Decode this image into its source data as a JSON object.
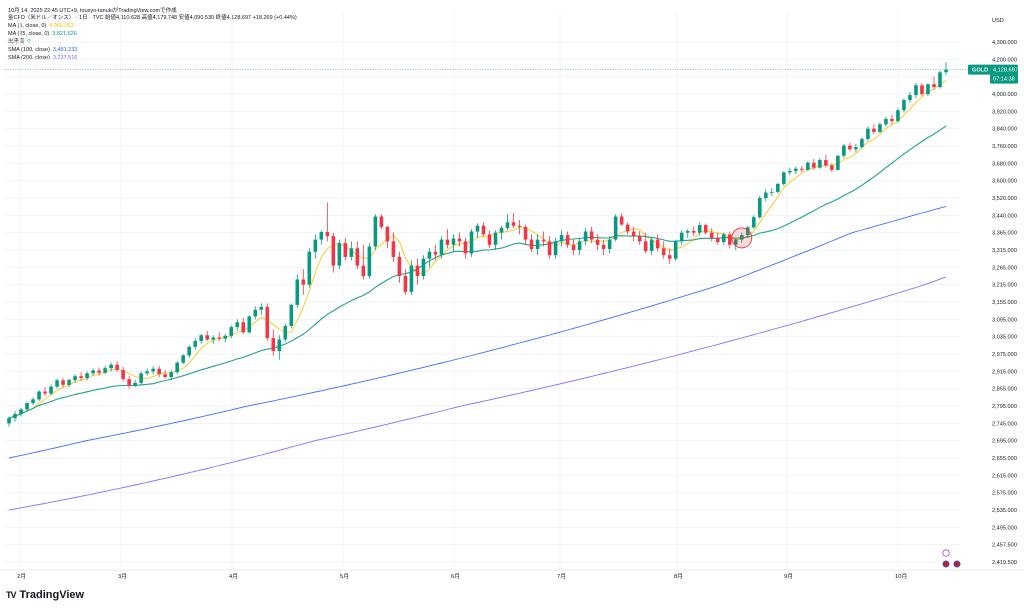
{
  "header": {
    "topline": "10月 14, 2025 22:45 UTC+9,  tousyo-tanukiがTradingView.comで作成",
    "legend": [
      {
        "name": "金CFD（米ドル／オンス） · 1日 · TVC  始値4,110.628  高値4,179.748  安値4,090.530  終値4,128.697  +18.269 (+0.44%)",
        "value": "",
        "color": "#131722"
      },
      {
        "name": "MA (5, close, 0)",
        "value": "4,066.063",
        "color": "#f5c400"
      },
      {
        "name": "MA (25, close, 0)",
        "value": "3,821.626",
        "color": "#089981"
      },
      {
        "name": "出来高",
        "value": "0",
        "color": "#089981"
      },
      {
        "name": "SMA (100, close)",
        "value": "3,481.233",
        "color": "#2962ff"
      },
      {
        "name": "SMA (200, close)",
        "value": "3,237.516",
        "color": "#7b61ff"
      }
    ]
  },
  "price_axis": {
    "currency": "USD",
    "ticks": [
      "4,300.000",
      "4,200.000",
      "4,080.000",
      "4,000.000",
      "3,920.000",
      "3,840.000",
      "3,760.000",
      "3,680.000",
      "3,600.000",
      "3,520.000",
      "3,440.000",
      "3,365.000",
      "3,315.000",
      "3,265.000",
      "3,215.000",
      "3,155.000",
      "3,095.000",
      "3,035.000",
      "2,975.000",
      "2,915.000",
      "2,855.000",
      "2,795.000",
      "2,745.000",
      "2,695.000",
      "2,655.000",
      "2,615.000",
      "2,575.000",
      "2,535.000",
      "2,495.000",
      "2,457.500",
      "2,419.500"
    ],
    "last_label": "GOLD",
    "last_price": "4,128.697",
    "countdown": "07:14:38"
  },
  "time_axis": {
    "labels": [
      "2月",
      "3月",
      "4月",
      "5月",
      "6月",
      "7月",
      "8月",
      "9月",
      "10月"
    ]
  },
  "branding": {
    "logo_text": "TradingView",
    "logo_mark": "TV"
  },
  "colors": {
    "up": "#089981",
    "down": "#f23645",
    "ma5": "#f5c400",
    "ma25": "#089981",
    "sma100": "#2962ff",
    "sma200": "#7b61ff",
    "grid": "#f0f3fa"
  },
  "chart_data": {
    "type": "candlestick",
    "xlabel": "",
    "ylabel": "USD",
    "ylim": [
      2419.5,
      4300
    ],
    "grid": true,
    "legend_position": "top-left",
    "series": [
      {
        "name": "金CFD（米ドル／オンス）",
        "values": [
          [
            2745,
            2765,
            2735,
            2760
          ],
          [
            2760,
            2780,
            2750,
            2772
          ],
          [
            2772,
            2790,
            2765,
            2785
          ],
          [
            2785,
            2810,
            2780,
            2805
          ],
          [
            2805,
            2825,
            2798,
            2818
          ],
          [
            2818,
            2850,
            2812,
            2845
          ],
          [
            2845,
            2860,
            2830,
            2838
          ],
          [
            2838,
            2870,
            2832,
            2862
          ],
          [
            2862,
            2890,
            2856,
            2884
          ],
          [
            2884,
            2892,
            2860,
            2868
          ],
          [
            2868,
            2890,
            2860,
            2885
          ],
          [
            2885,
            2905,
            2875,
            2898
          ],
          [
            2898,
            2912,
            2882,
            2892
          ],
          [
            2892,
            2915,
            2885,
            2908
          ],
          [
            2908,
            2925,
            2900,
            2918
          ],
          [
            2918,
            2928,
            2900,
            2910
          ],
          [
            2910,
            2935,
            2905,
            2926
          ],
          [
            2926,
            2945,
            2915,
            2938
          ],
          [
            2938,
            2950,
            2912,
            2920
          ],
          [
            2920,
            2930,
            2880,
            2888
          ],
          [
            2888,
            2900,
            2855,
            2865
          ],
          [
            2865,
            2885,
            2860,
            2875
          ],
          [
            2875,
            2915,
            2870,
            2908
          ],
          [
            2908,
            2925,
            2900,
            2915
          ],
          [
            2915,
            2932,
            2905,
            2924
          ],
          [
            2924,
            2934,
            2895,
            2905
          ],
          [
            2905,
            2920,
            2890,
            2895
          ],
          [
            2895,
            2920,
            2885,
            2912
          ],
          [
            2912,
            2950,
            2905,
            2945
          ],
          [
            2945,
            2975,
            2940,
            2970
          ],
          [
            2970,
            3005,
            2962,
            3000
          ],
          [
            3000,
            3030,
            2990,
            3020
          ],
          [
            3020,
            3045,
            3010,
            3040
          ],
          [
            3040,
            3055,
            3020,
            3025
          ],
          [
            3025,
            3040,
            3010,
            3032
          ],
          [
            3032,
            3050,
            3020,
            3028
          ],
          [
            3028,
            3045,
            3015,
            3038
          ],
          [
            3038,
            3075,
            3030,
            3068
          ],
          [
            3068,
            3095,
            3055,
            3085
          ],
          [
            3085,
            3100,
            3045,
            3050
          ],
          [
            3050,
            3110,
            3045,
            3105
          ],
          [
            3105,
            3140,
            3095,
            3128
          ],
          [
            3128,
            3150,
            3110,
            3138
          ],
          [
            3138,
            3150,
            3020,
            3030
          ],
          [
            3030,
            3060,
            2970,
            2985
          ],
          [
            2985,
            3040,
            2955,
            3025
          ],
          [
            3025,
            3080,
            3018,
            3072
          ],
          [
            3072,
            3150,
            3065,
            3145
          ],
          [
            3145,
            3245,
            3135,
            3230
          ],
          [
            3230,
            3260,
            3180,
            3215
          ],
          [
            3215,
            3320,
            3205,
            3310
          ],
          [
            3310,
            3360,
            3290,
            3345
          ],
          [
            3345,
            3375,
            3330,
            3368
          ],
          [
            3368,
            3500,
            3340,
            3355
          ],
          [
            3355,
            3365,
            3250,
            3270
          ],
          [
            3270,
            3345,
            3260,
            3335
          ],
          [
            3335,
            3350,
            3285,
            3295
          ],
          [
            3295,
            3340,
            3285,
            3320
          ],
          [
            3320,
            3340,
            3260,
            3270
          ],
          [
            3270,
            3330,
            3230,
            3240
          ],
          [
            3240,
            3335,
            3232,
            3325
          ],
          [
            3325,
            3445,
            3315,
            3435
          ],
          [
            3435,
            3445,
            3380,
            3390
          ],
          [
            3390,
            3395,
            3320,
            3340
          ],
          [
            3340,
            3365,
            3280,
            3295
          ],
          [
            3295,
            3310,
            3220,
            3240
          ],
          [
            3240,
            3260,
            3180,
            3190
          ],
          [
            3190,
            3285,
            3180,
            3270
          ],
          [
            3270,
            3290,
            3215,
            3240
          ],
          [
            3240,
            3300,
            3230,
            3290
          ],
          [
            3290,
            3320,
            3265,
            3310
          ],
          [
            3310,
            3330,
            3285,
            3302
          ],
          [
            3302,
            3355,
            3290,
            3345
          ],
          [
            3345,
            3380,
            3320,
            3330
          ],
          [
            3330,
            3360,
            3310,
            3348
          ],
          [
            3348,
            3365,
            3325,
            3340
          ],
          [
            3340,
            3350,
            3290,
            3305
          ],
          [
            3305,
            3380,
            3295,
            3370
          ],
          [
            3370,
            3405,
            3350,
            3395
          ],
          [
            3395,
            3410,
            3355,
            3360
          ],
          [
            3360,
            3375,
            3320,
            3330
          ],
          [
            3330,
            3375,
            3315,
            3365
          ],
          [
            3365,
            3395,
            3345,
            3385
          ],
          [
            3385,
            3445,
            3375,
            3410
          ],
          [
            3410,
            3450,
            3385,
            3395
          ],
          [
            3395,
            3420,
            3360,
            3390
          ],
          [
            3390,
            3400,
            3330,
            3345
          ],
          [
            3345,
            3360,
            3310,
            3318
          ],
          [
            3318,
            3360,
            3300,
            3345
          ],
          [
            3345,
            3370,
            3325,
            3340
          ],
          [
            3340,
            3355,
            3290,
            3300
          ],
          [
            3300,
            3350,
            3290,
            3340
          ],
          [
            3340,
            3375,
            3325,
            3358
          ],
          [
            3358,
            3370,
            3320,
            3330
          ],
          [
            3330,
            3345,
            3300,
            3315
          ],
          [
            3315,
            3350,
            3300,
            3340
          ],
          [
            3340,
            3385,
            3330,
            3370
          ],
          [
            3370,
            3390,
            3335,
            3345
          ],
          [
            3345,
            3360,
            3315,
            3330
          ],
          [
            3330,
            3345,
            3300,
            3318
          ],
          [
            3318,
            3355,
            3305,
            3345
          ],
          [
            3345,
            3445,
            3340,
            3435
          ],
          [
            3435,
            3450,
            3395,
            3400
          ],
          [
            3400,
            3410,
            3360,
            3370
          ],
          [
            3370,
            3390,
            3340,
            3355
          ],
          [
            3355,
            3372,
            3330,
            3340
          ],
          [
            3340,
            3365,
            3305,
            3312
          ],
          [
            3312,
            3352,
            3300,
            3345
          ],
          [
            3345,
            3360,
            3310,
            3320
          ],
          [
            3320,
            3340,
            3290,
            3300
          ],
          [
            3300,
            3320,
            3275,
            3290
          ],
          [
            3290,
            3345,
            3285,
            3340
          ],
          [
            3340,
            3375,
            3330,
            3365
          ],
          [
            3365,
            3380,
            3350,
            3372
          ],
          [
            3372,
            3392,
            3355,
            3365
          ],
          [
            3365,
            3410,
            3355,
            3398
          ],
          [
            3398,
            3405,
            3360,
            3365
          ],
          [
            3365,
            3385,
            3340,
            3350
          ],
          [
            3350,
            3365,
            3330,
            3338
          ],
          [
            3338,
            3365,
            3330,
            3360
          ],
          [
            3360,
            3370,
            3320,
            3330
          ],
          [
            3330,
            3350,
            3315,
            3345
          ],
          [
            3345,
            3365,
            3335,
            3358
          ],
          [
            3358,
            3395,
            3350,
            3388
          ],
          [
            3388,
            3440,
            3380,
            3432
          ],
          [
            3432,
            3530,
            3425,
            3520
          ],
          [
            3520,
            3560,
            3505,
            3545
          ],
          [
            3545,
            3565,
            3530,
            3548
          ],
          [
            3548,
            3590,
            3540,
            3585
          ],
          [
            3585,
            3645,
            3575,
            3638
          ],
          [
            3638,
            3660,
            3625,
            3645
          ],
          [
            3645,
            3665,
            3630,
            3655
          ],
          [
            3655,
            3668,
            3640,
            3650
          ],
          [
            3650,
            3690,
            3645,
            3683
          ],
          [
            3683,
            3700,
            3650,
            3660
          ],
          [
            3660,
            3705,
            3655,
            3695
          ],
          [
            3695,
            3720,
            3660,
            3670
          ],
          [
            3670,
            3680,
            3640,
            3650
          ],
          [
            3650,
            3720,
            3645,
            3715
          ],
          [
            3715,
            3770,
            3705,
            3762
          ],
          [
            3762,
            3775,
            3735,
            3745
          ],
          [
            3745,
            3770,
            3730,
            3755
          ],
          [
            3755,
            3800,
            3748,
            3792
          ],
          [
            3792,
            3850,
            3785,
            3840
          ],
          [
            3840,
            3860,
            3815,
            3825
          ],
          [
            3825,
            3870,
            3818,
            3860
          ],
          [
            3860,
            3895,
            3850,
            3885
          ],
          [
            3885,
            3905,
            3860,
            3875
          ],
          [
            3875,
            3935,
            3868,
            3925
          ],
          [
            3925,
            3980,
            3915,
            3972
          ],
          [
            3972,
            4010,
            3960,
            3995
          ],
          [
            3995,
            4050,
            3980,
            4040
          ],
          [
            4040,
            4050,
            3990,
            4000
          ],
          [
            4000,
            4050,
            3990,
            4045
          ],
          [
            4045,
            4080,
            4020,
            4032
          ],
          [
            4032,
            4120,
            4025,
            4110
          ],
          [
            4110.628,
            4179.748,
            4090.53,
            4128.697
          ]
        ]
      },
      {
        "name": "MA (5, close, 0)",
        "values": []
      },
      {
        "name": "MA (25, close, 0)",
        "values": []
      },
      {
        "name": "SMA (100, close)",
        "values": []
      },
      {
        "name": "SMA (200, close)",
        "values": []
      }
    ],
    "sma100_anchor": [
      2655,
      3481.233
    ],
    "sma200_anchor": [
      2535,
      3237.516
    ]
  }
}
